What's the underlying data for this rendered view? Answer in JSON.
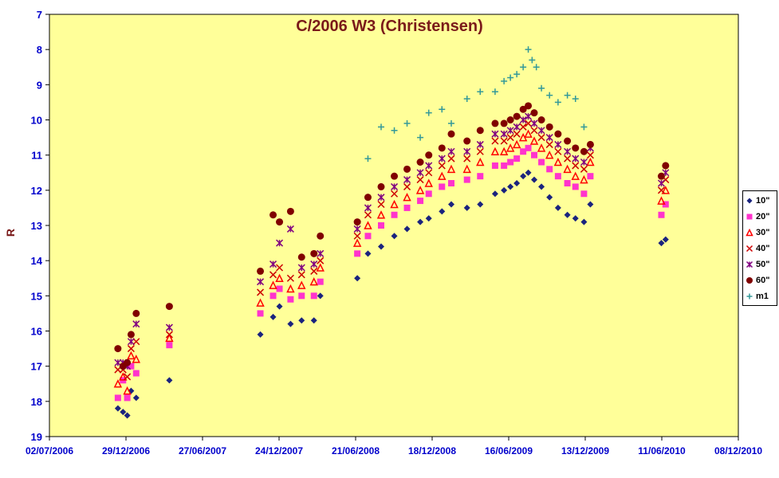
{
  "chart_data": {
    "type": "scatter",
    "title": "C/2006 W3 (Christensen)",
    "xlabel": "",
    "ylabel": "R",
    "ylim": [
      7,
      19
    ],
    "y_inverted": true,
    "x_range": [
      "2006-07-02",
      "2010-12-08"
    ],
    "x_ticks": [
      "02/07/2006",
      "29/12/2006",
      "27/06/2007",
      "24/12/2007",
      "21/06/2008",
      "18/12/2008",
      "16/06/2009",
      "13/12/2009",
      "11/06/2010",
      "08/12/2010"
    ],
    "y_ticks": [
      7,
      8,
      9,
      10,
      11,
      12,
      13,
      14,
      15,
      16,
      17,
      18,
      19
    ],
    "grid": false,
    "legend_position": "right",
    "colors": {
      "plot_background": "#ffff99",
      "title": "#7a1a1a",
      "axis_labels": "#0000cc",
      "ylabel": "#7a1a1a"
    },
    "series": [
      {
        "name": "10\"",
        "marker": "diamond",
        "color": "#1a237e",
        "x": [
          "2006-12-10",
          "2006-12-22",
          "2007-01-01",
          "2007-01-10",
          "2007-01-22",
          "2007-04-10",
          "2007-11-10",
          "2007-12-10",
          "2007-12-25",
          "2008-01-20",
          "2008-02-15",
          "2008-03-15",
          "2008-03-30",
          "2008-06-25",
          "2008-07-20",
          "2008-08-20",
          "2008-09-20",
          "2008-10-20",
          "2008-11-20",
          "2008-12-10",
          "2009-01-10",
          "2009-02-01",
          "2009-03-10",
          "2009-04-10",
          "2009-05-15",
          "2009-06-05",
          "2009-06-20",
          "2009-07-05",
          "2009-07-20",
          "2009-08-01",
          "2009-08-15",
          "2009-09-01",
          "2009-09-20",
          "2009-10-10",
          "2009-11-01",
          "2009-11-20",
          "2009-12-10",
          "2009-12-25",
          "2010-06-10",
          "2010-06-20"
        ],
        "y": [
          18.2,
          18.3,
          18.4,
          17.7,
          17.9,
          17.4,
          16.1,
          15.6,
          15.3,
          15.8,
          15.7,
          15.7,
          15.0,
          14.5,
          13.8,
          13.6,
          13.3,
          13.1,
          12.9,
          12.8,
          12.6,
          12.4,
          12.5,
          12.4,
          12.1,
          12.0,
          11.9,
          11.8,
          11.6,
          11.5,
          11.7,
          11.9,
          12.2,
          12.5,
          12.7,
          12.8,
          12.9,
          12.4,
          13.5,
          13.4
        ]
      },
      {
        "name": "20\"",
        "marker": "square",
        "color": "#ff33cc",
        "x": [
          "2006-12-10",
          "2006-12-22",
          "2007-01-01",
          "2007-01-10",
          "2007-01-22",
          "2007-04-10",
          "2007-11-10",
          "2007-12-10",
          "2007-12-25",
          "2008-01-20",
          "2008-02-15",
          "2008-03-15",
          "2008-03-30",
          "2008-06-25",
          "2008-07-20",
          "2008-08-20",
          "2008-09-20",
          "2008-10-20",
          "2008-11-20",
          "2008-12-10",
          "2009-01-10",
          "2009-02-01",
          "2009-03-10",
          "2009-04-10",
          "2009-05-15",
          "2009-06-05",
          "2009-06-20",
          "2009-07-05",
          "2009-07-20",
          "2009-08-01",
          "2009-08-15",
          "2009-09-01",
          "2009-09-20",
          "2009-10-10",
          "2009-11-01",
          "2009-11-20",
          "2009-12-10",
          "2009-12-25",
          "2010-06-10",
          "2010-06-20"
        ],
        "y": [
          17.9,
          17.4,
          17.9,
          17.0,
          17.2,
          16.4,
          15.5,
          15.0,
          14.8,
          15.1,
          15.0,
          15.0,
          14.6,
          13.8,
          13.3,
          13.0,
          12.7,
          12.5,
          12.3,
          12.1,
          11.9,
          11.8,
          11.7,
          11.6,
          11.3,
          11.3,
          11.2,
          11.1,
          10.9,
          10.8,
          11.0,
          11.2,
          11.4,
          11.6,
          11.8,
          11.9,
          12.1,
          11.6,
          12.7,
          12.4
        ]
      },
      {
        "name": "30\"",
        "marker": "triangle",
        "color": "#ff0000",
        "x": [
          "2006-12-10",
          "2006-12-22",
          "2007-01-01",
          "2007-01-10",
          "2007-01-22",
          "2007-04-10",
          "2007-11-10",
          "2007-12-10",
          "2007-12-25",
          "2008-01-20",
          "2008-02-15",
          "2008-03-15",
          "2008-03-30",
          "2008-06-25",
          "2008-07-20",
          "2008-08-20",
          "2008-09-20",
          "2008-10-20",
          "2008-11-20",
          "2008-12-10",
          "2009-01-10",
          "2009-02-01",
          "2009-03-10",
          "2009-04-10",
          "2009-05-15",
          "2009-06-05",
          "2009-06-20",
          "2009-07-05",
          "2009-07-20",
          "2009-08-01",
          "2009-08-15",
          "2009-09-01",
          "2009-09-20",
          "2009-10-10",
          "2009-11-01",
          "2009-11-20",
          "2009-12-10",
          "2009-12-25",
          "2010-06-10",
          "2010-06-20"
        ],
        "y": [
          17.5,
          17.3,
          17.7,
          16.7,
          16.8,
          16.2,
          15.2,
          14.7,
          14.5,
          14.8,
          14.7,
          14.6,
          14.2,
          13.5,
          13.0,
          12.7,
          12.4,
          12.2,
          12.0,
          11.8,
          11.6,
          11.4,
          11.4,
          11.2,
          10.9,
          10.9,
          10.8,
          10.7,
          10.5,
          10.4,
          10.6,
          10.8,
          11.0,
          11.2,
          11.4,
          11.6,
          11.7,
          11.2,
          12.3,
          12.0
        ]
      },
      {
        "name": "40\"",
        "marker": "x",
        "color": "#cc0000",
        "x": [
          "2006-12-10",
          "2006-12-22",
          "2007-01-01",
          "2007-01-10",
          "2007-01-22",
          "2007-04-10",
          "2007-11-10",
          "2007-12-10",
          "2007-12-25",
          "2008-01-20",
          "2008-02-15",
          "2008-03-15",
          "2008-03-30",
          "2008-06-25",
          "2008-07-20",
          "2008-08-20",
          "2008-09-20",
          "2008-10-20",
          "2008-11-20",
          "2008-12-10",
          "2009-01-10",
          "2009-02-01",
          "2009-03-10",
          "2009-04-10",
          "2009-05-15",
          "2009-06-05",
          "2009-06-20",
          "2009-07-05",
          "2009-07-20",
          "2009-08-01",
          "2009-08-15",
          "2009-09-01",
          "2009-09-20",
          "2009-10-10",
          "2009-11-01",
          "2009-11-20",
          "2009-12-10",
          "2009-12-25",
          "2010-06-10",
          "2010-06-20"
        ],
        "y": [
          17.1,
          17.1,
          17.3,
          16.5,
          16.3,
          16.1,
          14.9,
          14.4,
          14.2,
          14.5,
          14.4,
          14.3,
          14.0,
          13.3,
          12.7,
          12.4,
          12.1,
          11.9,
          11.7,
          11.5,
          11.3,
          11.1,
          11.1,
          10.9,
          10.6,
          10.6,
          10.5,
          10.4,
          10.2,
          10.1,
          10.3,
          10.5,
          10.7,
          10.9,
          11.1,
          11.3,
          11.4,
          11.0,
          12.0,
          11.7
        ]
      },
      {
        "name": "50\"",
        "marker": "asterisk",
        "color": "#800080",
        "x": [
          "2006-12-10",
          "2006-12-22",
          "2007-01-01",
          "2007-01-10",
          "2007-01-22",
          "2007-04-10",
          "2007-11-10",
          "2007-12-10",
          "2007-12-25",
          "2008-01-20",
          "2008-02-15",
          "2008-03-15",
          "2008-03-30",
          "2008-06-25",
          "2008-07-20",
          "2008-08-20",
          "2008-09-20",
          "2008-10-20",
          "2008-11-20",
          "2008-12-10",
          "2009-01-10",
          "2009-02-01",
          "2009-03-10",
          "2009-04-10",
          "2009-05-15",
          "2009-06-05",
          "2009-06-20",
          "2009-07-05",
          "2009-07-20",
          "2009-08-01",
          "2009-08-15",
          "2009-09-01",
          "2009-09-20",
          "2009-10-10",
          "2009-11-01",
          "2009-11-20",
          "2009-12-10",
          "2009-12-25",
          "2010-06-10",
          "2010-06-20"
        ],
        "y": [
          16.9,
          16.9,
          17.0,
          16.3,
          15.8,
          15.9,
          14.6,
          14.1,
          13.5,
          13.1,
          14.2,
          14.1,
          13.8,
          13.1,
          12.5,
          12.2,
          11.9,
          11.7,
          11.5,
          11.3,
          11.1,
          10.9,
          10.9,
          10.7,
          10.4,
          10.4,
          10.3,
          10.2,
          10.0,
          9.9,
          10.1,
          10.3,
          10.5,
          10.7,
          10.9,
          11.1,
          11.2,
          10.8,
          11.8,
          11.5
        ]
      },
      {
        "name": "60\"",
        "marker": "circle",
        "color": "#800000",
        "x": [
          "2006-12-10",
          "2006-12-22",
          "2007-01-01",
          "2007-01-10",
          "2007-01-22",
          "2007-04-10",
          "2007-11-10",
          "2007-12-10",
          "2007-12-25",
          "2008-01-20",
          "2008-02-15",
          "2008-03-15",
          "2008-03-30",
          "2008-06-25",
          "2008-07-20",
          "2008-08-20",
          "2008-09-20",
          "2008-10-20",
          "2008-11-20",
          "2008-12-10",
          "2009-01-10",
          "2009-02-01",
          "2009-03-10",
          "2009-04-10",
          "2009-05-15",
          "2009-06-05",
          "2009-06-20",
          "2009-07-05",
          "2009-07-20",
          "2009-08-01",
          "2009-08-15",
          "2009-09-01",
          "2009-09-20",
          "2009-10-10",
          "2009-11-01",
          "2009-11-20",
          "2009-12-10",
          "2009-12-25",
          "2010-06-10",
          "2010-06-20"
        ],
        "y": [
          16.5,
          17.0,
          16.9,
          16.1,
          15.5,
          15.3,
          14.3,
          12.7,
          12.9,
          12.6,
          13.9,
          13.8,
          13.3,
          12.9,
          12.2,
          11.9,
          11.6,
          11.4,
          11.2,
          11.0,
          10.8,
          10.4,
          10.6,
          10.3,
          10.1,
          10.1,
          10.0,
          9.9,
          9.7,
          9.6,
          9.8,
          10.0,
          10.2,
          10.4,
          10.6,
          10.8,
          10.9,
          10.7,
          11.6,
          11.3
        ]
      },
      {
        "name": "m1",
        "marker": "plus",
        "color": "#339999",
        "x": [
          "2008-07-20",
          "2008-08-20",
          "2008-09-20",
          "2008-10-20",
          "2008-11-20",
          "2008-12-10",
          "2009-01-10",
          "2009-02-01",
          "2009-03-10",
          "2009-04-10",
          "2009-05-15",
          "2009-06-05",
          "2009-06-20",
          "2009-07-05",
          "2009-07-20",
          "2009-08-01",
          "2009-08-10",
          "2009-08-20",
          "2009-09-01",
          "2009-09-20",
          "2009-10-10",
          "2009-11-01",
          "2009-11-20",
          "2009-12-10"
        ],
        "y": [
          11.1,
          10.2,
          10.3,
          10.1,
          10.5,
          9.8,
          9.7,
          10.1,
          9.4,
          9.2,
          9.2,
          8.9,
          8.8,
          8.7,
          8.5,
          8.0,
          8.3,
          8.5,
          9.1,
          9.3,
          9.5,
          9.3,
          9.4,
          10.2
        ]
      }
    ]
  }
}
